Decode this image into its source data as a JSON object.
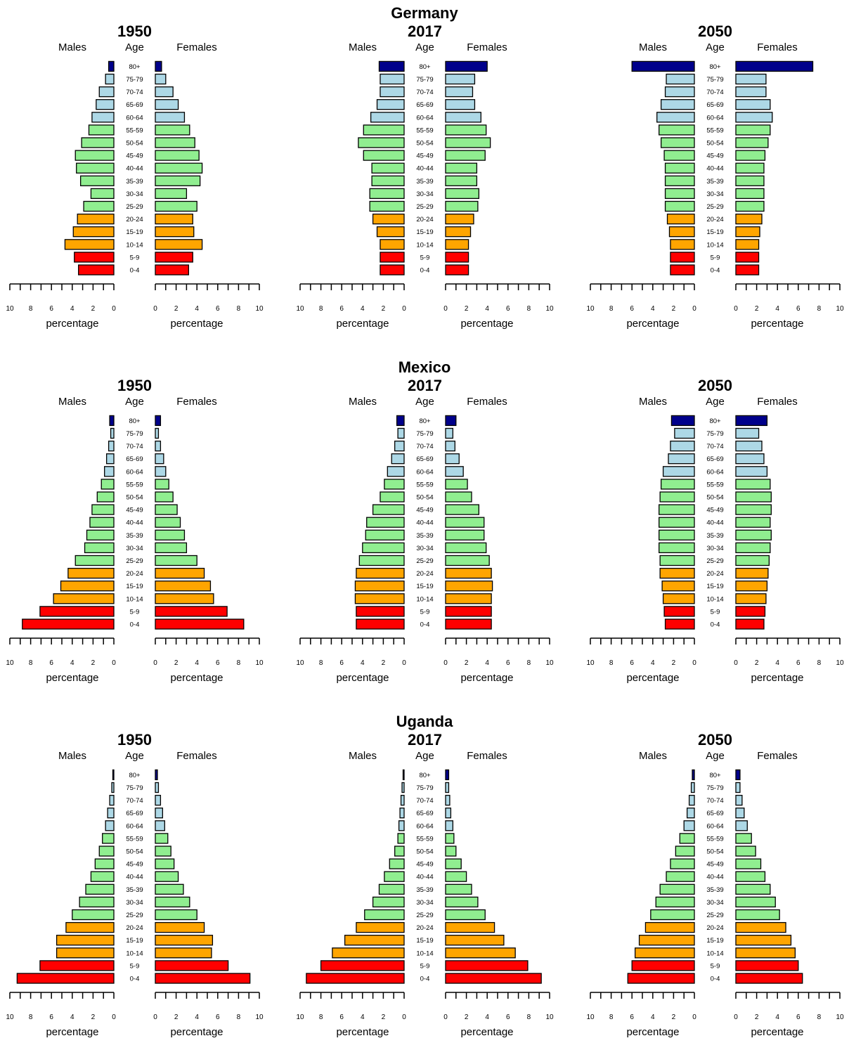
{
  "chart_data": {
    "type": "bar",
    "orientation": "horizontal",
    "age_groups": [
      "0-4",
      "5-9",
      "10-14",
      "15-19",
      "20-24",
      "25-29",
      "30-34",
      "35-39",
      "40-44",
      "45-49",
      "50-54",
      "55-59",
      "60-64",
      "65-69",
      "70-74",
      "75-79",
      "80+"
    ],
    "side_labels": {
      "males": "Males",
      "age": "Age",
      "females": "Females"
    },
    "xlabel": "percentage",
    "xlim": [
      0,
      10
    ],
    "xticks": [
      "0",
      "2",
      "4",
      "6",
      "8",
      "10"
    ],
    "age_group_colors": {
      "0-9": "#ff0000",
      "10-24": "#ffa500",
      "25-59": "#90ee90",
      "60-79": "#add8e6",
      "80+": "#00008b"
    },
    "countries": [
      {
        "name": "Germany",
        "panels": [
          {
            "year": "1950",
            "males": [
              3.4,
              3.8,
              4.7,
              3.9,
              3.5,
              2.9,
              2.2,
              3.2,
              3.6,
              3.7,
              3.1,
              2.4,
              2.1,
              1.7,
              1.4,
              0.8,
              0.5
            ],
            "females": [
              3.2,
              3.6,
              4.5,
              3.7,
              3.6,
              4.0,
              3.0,
              4.3,
              4.5,
              4.2,
              3.8,
              3.3,
              2.8,
              2.2,
              1.7,
              1.0,
              0.6
            ]
          },
          {
            "year": "2017",
            "males": [
              2.3,
              2.3,
              2.3,
              2.6,
              3.0,
              3.3,
              3.3,
              3.1,
              3.1,
              3.9,
              4.4,
              3.9,
              3.2,
              2.6,
              2.3,
              2.3,
              2.4
            ],
            "females": [
              2.2,
              2.2,
              2.2,
              2.4,
              2.7,
              3.1,
              3.2,
              3.0,
              3.0,
              3.8,
              4.3,
              3.9,
              3.4,
              2.8,
              2.6,
              2.8,
              4.0
            ]
          },
          {
            "year": "2050",
            "males": [
              2.3,
              2.3,
              2.3,
              2.4,
              2.6,
              2.8,
              2.8,
              2.8,
              2.8,
              2.9,
              3.2,
              3.4,
              3.6,
              3.2,
              2.8,
              2.7,
              6.0
            ],
            "females": [
              2.2,
              2.2,
              2.2,
              2.3,
              2.5,
              2.7,
              2.7,
              2.7,
              2.7,
              2.8,
              3.1,
              3.3,
              3.5,
              3.3,
              2.9,
              2.9,
              7.4
            ]
          }
        ]
      },
      {
        "name": "Mexico",
        "panels": [
          {
            "year": "1950",
            "males": [
              8.8,
              7.1,
              5.8,
              5.1,
              4.4,
              3.7,
              2.8,
              2.6,
              2.3,
              2.1,
              1.6,
              1.2,
              0.9,
              0.7,
              0.5,
              0.3,
              0.4
            ],
            "females": [
              8.5,
              6.9,
              5.6,
              5.3,
              4.7,
              4.0,
              3.0,
              2.8,
              2.4,
              2.1,
              1.7,
              1.3,
              1.0,
              0.8,
              0.5,
              0.3,
              0.5
            ]
          },
          {
            "year": "2017",
            "males": [
              4.6,
              4.6,
              4.7,
              4.7,
              4.6,
              4.3,
              4.0,
              3.7,
              3.6,
              3.0,
              2.3,
              1.9,
              1.6,
              1.2,
              0.9,
              0.6,
              0.7
            ],
            "females": [
              4.4,
              4.4,
              4.4,
              4.5,
              4.4,
              4.2,
              3.9,
              3.7,
              3.7,
              3.2,
              2.5,
              2.1,
              1.7,
              1.3,
              0.9,
              0.7,
              1.0
            ]
          },
          {
            "year": "2050",
            "males": [
              2.8,
              2.9,
              3.0,
              3.1,
              3.3,
              3.3,
              3.4,
              3.4,
              3.4,
              3.4,
              3.3,
              3.2,
              3.0,
              2.5,
              2.3,
              1.9,
              2.2
            ],
            "females": [
              2.7,
              2.8,
              2.9,
              3.0,
              3.1,
              3.2,
              3.3,
              3.4,
              3.3,
              3.4,
              3.4,
              3.3,
              3.0,
              2.7,
              2.5,
              2.2,
              3.0
            ]
          }
        ]
      },
      {
        "name": "Uganda",
        "panels": [
          {
            "year": "1950",
            "males": [
              9.3,
              7.1,
              5.5,
              5.5,
              4.6,
              4.0,
              3.3,
              2.7,
              2.2,
              1.8,
              1.4,
              1.1,
              0.8,
              0.6,
              0.4,
              0.2,
              0.1
            ],
            "females": [
              9.1,
              7.0,
              5.4,
              5.5,
              4.7,
              4.0,
              3.3,
              2.7,
              2.2,
              1.8,
              1.5,
              1.2,
              0.9,
              0.7,
              0.5,
              0.3,
              0.2
            ]
          },
          {
            "year": "2017",
            "males": [
              9.4,
              8.0,
              6.9,
              5.7,
              4.6,
              3.8,
              3.0,
              2.4,
              1.9,
              1.4,
              0.9,
              0.6,
              0.5,
              0.4,
              0.3,
              0.2,
              0.1
            ],
            "females": [
              9.2,
              7.9,
              6.7,
              5.6,
              4.7,
              3.8,
              3.1,
              2.5,
              2.0,
              1.5,
              1.0,
              0.8,
              0.7,
              0.5,
              0.4,
              0.3,
              0.3
            ]
          },
          {
            "year": "2050",
            "males": [
              6.4,
              6.0,
              5.7,
              5.3,
              4.7,
              4.2,
              3.7,
              3.3,
              2.7,
              2.3,
              1.8,
              1.4,
              1.0,
              0.7,
              0.5,
              0.3,
              0.2
            ],
            "females": [
              6.4,
              6.0,
              5.7,
              5.3,
              4.8,
              4.2,
              3.8,
              3.3,
              2.8,
              2.4,
              1.9,
              1.5,
              1.1,
              0.8,
              0.6,
              0.4,
              0.4
            ]
          }
        ]
      }
    ]
  }
}
